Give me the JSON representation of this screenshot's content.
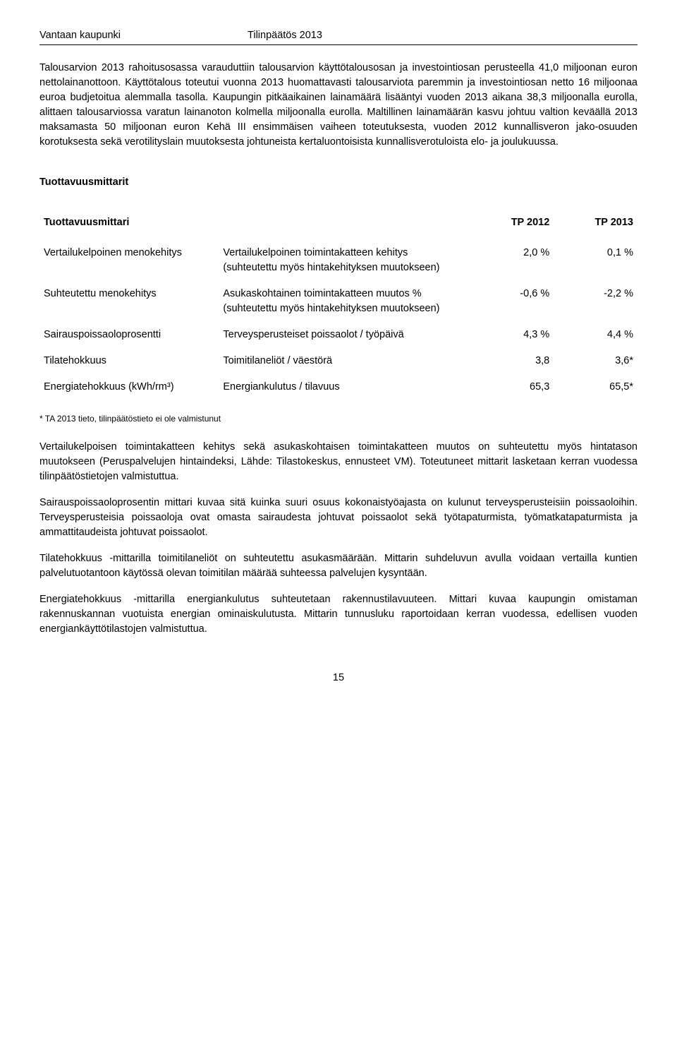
{
  "header": {
    "left": "Vantaan kaupunki",
    "right": "Tilinpäätös 2013"
  },
  "intro_para": "Talousarvion 2013 rahoitusosassa varauduttiin talousarvion käyttötalousosan ja investointiosan perusteella 41,0 miljoonan euron nettolainanottoon. Käyttötalous toteutui vuonna 2013 huomattavasti talousarviota paremmin ja investointiosan netto 16 miljoonaa euroa budjetoitua alemmalla tasolla. Kaupungin pitkäaikainen lainamäärä lisääntyi vuoden 2013 aikana 38,3 miljoonalla eurolla, alittaen talousarviossa varatun lainanoton kolmella miljoonalla eurolla. Maltillinen lainamäärän kasvu johtuu valtion keväällä 2013 maksamasta 50 miljoonan euron Kehä III ensimmäisen vaiheen toteutuksesta, vuoden 2012 kunnallisveron jako-osuuden korotuksesta sekä verotilityslain muutoksesta johtuneista kertaluontoisista kunnallisverotuloista elo- ja joulukuussa.",
  "section_heading": "Tuottavuusmittarit",
  "table": {
    "head": {
      "label": "Tuottavuusmittari",
      "col1": "TP 2012",
      "col2": "TP 2013"
    },
    "rows": [
      {
        "name": "Vertailukelpoinen menokehitys",
        "desc": "Vertailukelpoinen toimintakatteen kehitys (suhteutettu myös hintakehityksen muutokseen)",
        "v1": "2,0 %",
        "v2": "0,1 %"
      },
      {
        "name": "Suhteutettu menokehitys",
        "desc": "Asukaskohtainen toimintakatteen muutos % (suhteutettu myös hintakehityksen muutokseen)",
        "v1": "-0,6 %",
        "v2": "-2,2 %"
      },
      {
        "name": "Sairauspoissaoloprosentti",
        "desc": "Terveysperusteiset poissaolot / työpäivä",
        "v1": "4,3 %",
        "v2": "4,4 %"
      },
      {
        "name": "Tilatehokkuus",
        "desc": "Toimitilaneliöt / väestörä",
        "v1": "3,8",
        "v2": "3,6*"
      },
      {
        "name": "Energiatehokkuus (kWh/rm³)",
        "desc": "Energiankulutus / tilavuus",
        "v1": "65,3",
        "v2": "65,5*"
      }
    ]
  },
  "footnote": "* TA 2013 tieto, tilinpäätöstieto ei ole valmistunut",
  "body_paras": [
    "Vertailukelpoisen toimintakatteen kehitys sekä asukaskohtaisen toimintakatteen muutos on suhteutettu myös hintatason muutokseen (Peruspalvelujen hintaindeksi, Lähde: Tilastokeskus, ennusteet VM). Toteutuneet mittarit lasketaan kerran vuodessa tilinpäätöstietojen valmistuttua.",
    "Sairauspoissaoloprosentin mittari kuvaa sitä kuinka suuri osuus kokonaistyöajasta on kulunut terveysperusteisiin poissaoloihin. Terveysperusteisia poissaoloja ovat omasta sairaudesta johtuvat poissaolot sekä työtapaturmista, työmatkatapaturmista ja ammattitaudeista johtuvat poissaolot.",
    "Tilatehokkuus -mittarilla toimitilaneliöt on suhteutettu asukasmäärään. Mittarin suhdeluvun avulla voidaan vertailla kuntien palvelutuotantoon käytössä olevan toimitilan määrää suhteessa palvelujen kysyntään.",
    "Energiatehokkuus -mittarilla energiankulutus suhteutetaan rakennustilavuuteen. Mittari kuvaa kaupungin omistaman rakennuskannan vuotuista energian ominaiskulutusta. Mittarin tunnusluku raportoidaan kerran vuodessa, edellisen vuoden energiankäyttötilastojen valmistuttua."
  ],
  "page_number": "15"
}
